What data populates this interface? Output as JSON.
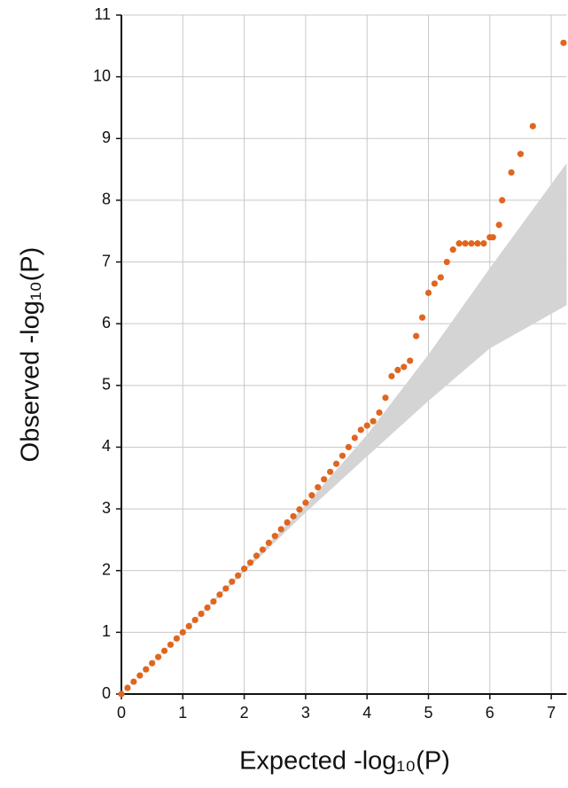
{
  "chart_data": {
    "type": "scatter",
    "xlabel": "Expected -log₁₀(P)",
    "ylabel": "Observed -log₁₀(P)",
    "xlim": [
      0,
      7.25
    ],
    "ylim": [
      0,
      11
    ],
    "xticks": [
      0,
      1,
      2,
      3,
      4,
      5,
      6,
      7
    ],
    "yticks": [
      0,
      1,
      2,
      3,
      4,
      5,
      6,
      7,
      8,
      9,
      10,
      11
    ],
    "grid": true,
    "band": {
      "color": "#d4d4d4",
      "x": [
        0,
        1,
        2,
        3,
        4,
        5,
        6,
        7.25
      ],
      "upper": [
        0,
        1.01,
        2.03,
        3.06,
        4.2,
        5.5,
        6.9,
        8.6
      ],
      "lower": [
        0,
        0.99,
        1.98,
        2.94,
        3.85,
        4.75,
        5.6,
        6.3
      ]
    },
    "series": [
      {
        "color": "#e0661f",
        "x": [
          0,
          0.1,
          0.2,
          0.3,
          0.4,
          0.5,
          0.6,
          0.7,
          0.8,
          0.9,
          1.0,
          1.1,
          1.2,
          1.3,
          1.4,
          1.5,
          1.6,
          1.7,
          1.8,
          1.9,
          2.0,
          2.1,
          2.2,
          2.3,
          2.4,
          2.5,
          2.6,
          2.7,
          2.8,
          2.9,
          3.0,
          3.1,
          3.2,
          3.3,
          3.4,
          3.5,
          3.6,
          3.7,
          3.8,
          3.9,
          4.0,
          4.1,
          4.2,
          4.3,
          4.4,
          4.5,
          4.6,
          4.7,
          4.8,
          4.9,
          5.0,
          5.1,
          5.2,
          5.3,
          5.4,
          5.5,
          5.6,
          5.7,
          5.8,
          5.9,
          6.0,
          6.05,
          6.15,
          6.2,
          6.35,
          6.5,
          6.7,
          7.2
        ],
        "values": [
          0,
          0.1,
          0.2,
          0.3,
          0.4,
          0.5,
          0.6,
          0.7,
          0.8,
          0.9,
          1.0,
          1.1,
          1.2,
          1.3,
          1.4,
          1.5,
          1.61,
          1.71,
          1.82,
          1.92,
          2.03,
          2.13,
          2.24,
          2.34,
          2.45,
          2.56,
          2.67,
          2.78,
          2.88,
          2.99,
          3.1,
          3.22,
          3.35,
          3.48,
          3.6,
          3.73,
          3.86,
          4.0,
          4.15,
          4.28,
          4.35,
          4.42,
          4.56,
          4.8,
          5.15,
          5.25,
          5.3,
          5.4,
          5.8,
          6.1,
          6.5,
          6.65,
          6.75,
          7.0,
          7.2,
          7.3,
          7.3,
          7.3,
          7.3,
          7.3,
          7.4,
          7.4,
          7.6,
          8.0,
          8.45,
          8.75,
          9.2,
          10.55
        ]
      }
    ]
  }
}
